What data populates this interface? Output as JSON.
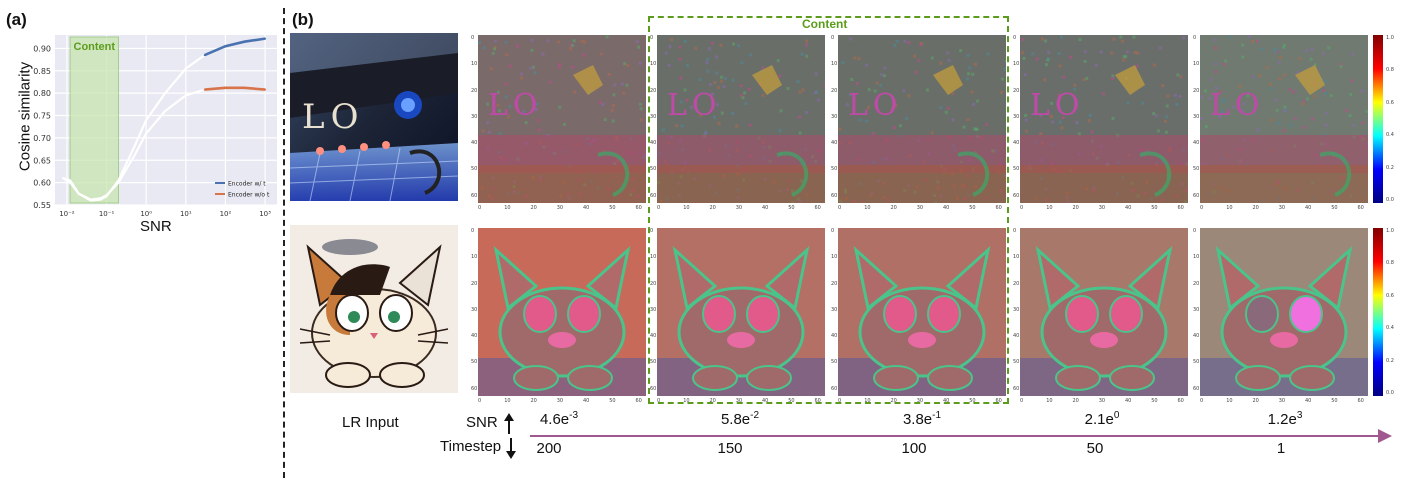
{
  "panel_a": {
    "label": "(a)",
    "chart_data": {
      "type": "line",
      "title": "",
      "xlabel": "SNR",
      "ylabel": "Cosine similarity",
      "x_scale": "log",
      "xlim": [
        0.005,
        2000
      ],
      "ylim": [
        0.55,
        0.93
      ],
      "x_ticks": [
        "10⁻²",
        "10⁻¹",
        "10⁰",
        "10¹",
        "10²",
        "10³"
      ],
      "y_ticks": [
        "0.55",
        "0.60",
        "0.65",
        "0.70",
        "0.75",
        "0.80",
        "0.85",
        "0.90"
      ],
      "grid": true,
      "legend_position": "bottom-right",
      "highlight": {
        "label": "Content",
        "x_range": [
          0.012,
          0.2
        ]
      },
      "series": [
        {
          "name": "Encoder w/ t",
          "color": "#4a72b0",
          "x": [
            0.008,
            0.012,
            0.02,
            0.04,
            0.07,
            0.1,
            0.2,
            0.5,
            1,
            3,
            10,
            30,
            100,
            300,
            1000
          ],
          "y": [
            0.61,
            0.605,
            0.575,
            0.56,
            0.562,
            0.57,
            0.605,
            0.68,
            0.74,
            0.8,
            0.855,
            0.885,
            0.905,
            0.915,
            0.922
          ]
        },
        {
          "name": "Encoder w/o t",
          "color": "#d8734a",
          "x": [
            0.008,
            0.012,
            0.02,
            0.04,
            0.07,
            0.1,
            0.2,
            0.5,
            1,
            3,
            10,
            30,
            100,
            300,
            1000
          ],
          "y": [
            0.61,
            0.6,
            0.575,
            0.562,
            0.565,
            0.572,
            0.6,
            0.66,
            0.71,
            0.76,
            0.795,
            0.808,
            0.812,
            0.812,
            0.808
          ]
        }
      ]
    }
  },
  "panel_b": {
    "label": "(b)",
    "content_label": "Content",
    "heatmap_ticks_x": [
      "0",
      "10",
      "20",
      "30",
      "40",
      "50",
      "60"
    ],
    "heatmap_ticks_y": [
      "0",
      "10",
      "20",
      "30",
      "40",
      "50",
      "60"
    ],
    "colorbar_ticks": [
      "1.0",
      "0.8",
      "0.6",
      "0.4",
      "0.2",
      "0.0"
    ],
    "bottom": {
      "lr_input_label": "LR Input",
      "snr_label": "SNR",
      "timestep_label": "Timestep",
      "snr_values": [
        {
          "base": "4.6e",
          "exp": "-3"
        },
        {
          "base": "5.8e",
          "exp": "-2"
        },
        {
          "base": "3.8e",
          "exp": "-1"
        },
        {
          "base": "2.1e",
          "exp": "0"
        },
        {
          "base": "1.2e",
          "exp": "3"
        }
      ],
      "timesteps": [
        "200",
        "150",
        "100",
        "50",
        "1"
      ]
    },
    "rows": [
      {
        "name": "sign-scene",
        "photo_text": "LO",
        "heat_text": "LO"
      },
      {
        "name": "cat-cartoon"
      }
    ]
  },
  "colors": {
    "grid_bg": "#e8e9f2",
    "content_green": "#5c9c1c",
    "arrow_purple": "#a0588e"
  }
}
